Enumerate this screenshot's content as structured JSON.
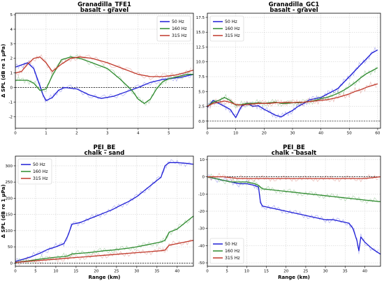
{
  "chart_data": [
    {
      "type": "line",
      "title": "Granadilla_TFE1",
      "subtitle": "basalt - gravel",
      "ylabel": "Δ SPL (dB re 1 μPa)",
      "xlabel": "",
      "xlim": [
        0,
        5.8
      ],
      "ylim": [
        -2.8,
        5.1
      ],
      "xticks": [
        0,
        1,
        2,
        3,
        4,
        5
      ],
      "yticks": [
        -2,
        -1,
        0,
        1,
        2,
        3,
        4,
        5
      ],
      "grid": true,
      "legend": "top-right",
      "series": [
        {
          "name": "50 Hz",
          "color": "#1f1fd6",
          "x": [
            0,
            0.2,
            0.4,
            0.6,
            0.7,
            0.8,
            0.9,
            1.0,
            1.2,
            1.4,
            1.6,
            2.0,
            2.4,
            2.8,
            3.2,
            3.6,
            4.0,
            4.4,
            4.8,
            5.0,
            5.2,
            5.4,
            5.6,
            5.8
          ],
          "y": [
            1.4,
            1.55,
            1.7,
            1.3,
            0.7,
            0.1,
            -0.5,
            -0.9,
            -0.7,
            -0.2,
            0.0,
            -0.1,
            -0.5,
            -0.75,
            -0.6,
            -0.3,
            0.0,
            0.35,
            0.55,
            0.6,
            0.65,
            0.7,
            0.8,
            0.9
          ]
        },
        {
          "name": "160 Hz",
          "color": "#2e8b2e",
          "x": [
            0,
            0.2,
            0.4,
            0.6,
            0.8,
            1.0,
            1.2,
            1.5,
            1.8,
            2.1,
            2.5,
            3.0,
            3.4,
            3.8,
            4.0,
            4.2,
            4.4,
            4.6,
            4.8,
            5.0,
            5.2,
            5.4,
            5.6,
            5.8
          ],
          "y": [
            0.5,
            0.5,
            0.5,
            0.3,
            -0.2,
            -0.1,
            0.8,
            1.9,
            2.1,
            2.0,
            1.7,
            1.3,
            0.6,
            -0.2,
            -0.8,
            -1.1,
            -0.8,
            -0.1,
            0.4,
            0.6,
            0.7,
            0.8,
            0.9,
            0.9
          ]
        },
        {
          "name": "315 Hz",
          "color": "#c0392b",
          "x": [
            0,
            0.2,
            0.4,
            0.6,
            0.8,
            1.0,
            1.2,
            1.5,
            1.8,
            2.1,
            2.5,
            3.0,
            3.5,
            4.0,
            4.4,
            4.8,
            5.2,
            5.5,
            5.8
          ],
          "y": [
            1.0,
            1.1,
            1.6,
            2.0,
            2.1,
            1.7,
            1.1,
            1.6,
            2.0,
            2.1,
            2.0,
            1.7,
            1.3,
            0.9,
            0.75,
            0.75,
            0.85,
            1.0,
            1.2
          ]
        }
      ]
    },
    {
      "type": "line",
      "title": "Granadilla_GC1",
      "subtitle": "basalt - gravel",
      "ylabel": "",
      "xlabel": "",
      "xlim": [
        0,
        61
      ],
      "ylim": [
        -1.2,
        18.2
      ],
      "xticks": [
        0,
        10,
        20,
        30,
        40,
        50,
        60
      ],
      "yticks": [
        0.0,
        2.5,
        5.0,
        7.5,
        10.0,
        12.5,
        15.0,
        17.5
      ],
      "grid": true,
      "legend": "top-left",
      "series": [
        {
          "name": "50 Hz",
          "color": "#1f1fd6",
          "x": [
            0,
            2,
            4,
            6,
            8,
            10,
            12,
            14,
            16,
            18,
            20,
            22,
            24,
            26,
            28,
            30,
            32,
            34,
            36,
            38,
            40,
            42,
            44,
            46,
            48,
            50,
            52,
            54,
            56,
            58,
            60
          ],
          "y": [
            2.3,
            3.5,
            3.0,
            2.5,
            2.0,
            0.6,
            2.5,
            3.0,
            2.5,
            2.6,
            2.0,
            1.5,
            1.0,
            0.7,
            1.3,
            1.8,
            2.5,
            3.0,
            3.6,
            3.8,
            4.0,
            4.5,
            5.0,
            5.5,
            6.5,
            7.5,
            8.5,
            9.5,
            10.5,
            11.5,
            12.0
          ]
        },
        {
          "name": "160 Hz",
          "color": "#2e8b2e",
          "x": [
            0,
            2,
            4,
            6,
            8,
            10,
            12,
            14,
            16,
            18,
            20,
            22,
            24,
            26,
            28,
            30,
            32,
            34,
            36,
            38,
            40,
            42,
            44,
            46,
            48,
            50,
            52,
            54,
            56,
            58,
            60
          ],
          "y": [
            2.5,
            3.2,
            3.5,
            4.0,
            3.5,
            2.7,
            2.8,
            3.0,
            3.0,
            3.1,
            3.0,
            3.1,
            3.2,
            3.0,
            3.0,
            3.1,
            3.1,
            3.2,
            3.3,
            3.5,
            3.8,
            4.0,
            4.3,
            4.7,
            5.2,
            5.8,
            6.5,
            7.3,
            8.0,
            8.5,
            9.0
          ]
        },
        {
          "name": "315 Hz",
          "color": "#c0392b",
          "x": [
            0,
            2,
            4,
            6,
            8,
            10,
            12,
            14,
            16,
            18,
            20,
            22,
            24,
            26,
            28,
            30,
            32,
            34,
            36,
            38,
            40,
            42,
            44,
            46,
            48,
            50,
            52,
            54,
            56,
            58,
            60
          ],
          "y": [
            2.5,
            3.0,
            3.2,
            3.4,
            3.2,
            2.8,
            2.7,
            2.8,
            2.9,
            3.0,
            3.0,
            3.0,
            3.1,
            3.1,
            3.2,
            3.1,
            3.2,
            3.2,
            3.3,
            3.4,
            3.5,
            3.6,
            3.8,
            4.0,
            4.3,
            4.6,
            5.0,
            5.3,
            5.7,
            6.0,
            6.3
          ]
        }
      ]
    },
    {
      "type": "line",
      "title": "PEI_BE",
      "subtitle": "chalk - sand",
      "ylabel": "Δ SPL (dB re 1 μPa)",
      "xlabel": "Range (km)",
      "xlim": [
        0,
        44
      ],
      "ylim": [
        -10,
        330
      ],
      "xticks": [
        0,
        5,
        10,
        15,
        20,
        25,
        30,
        35,
        40
      ],
      "yticks": [
        0,
        50,
        100,
        150,
        200,
        250,
        300
      ],
      "grid": true,
      "legend": "top-left",
      "series": [
        {
          "name": "50 Hz",
          "color": "#1f1fd6",
          "x": [
            0,
            2,
            4,
            6,
            8,
            10,
            12,
            13,
            14,
            16,
            18,
            20,
            22,
            24,
            26,
            28,
            30,
            32,
            34,
            36,
            37,
            38,
            40,
            42,
            44
          ],
          "y": [
            5,
            12,
            20,
            30,
            42,
            50,
            60,
            85,
            120,
            125,
            135,
            145,
            155,
            165,
            178,
            190,
            205,
            225,
            245,
            265,
            300,
            310,
            310,
            308,
            305
          ]
        },
        {
          "name": "160 Hz",
          "color": "#2e8b2e",
          "x": [
            0,
            2,
            4,
            6,
            8,
            10,
            12,
            13,
            14,
            16,
            18,
            20,
            22,
            24,
            26,
            28,
            30,
            32,
            34,
            36,
            37,
            38,
            40,
            42,
            44
          ],
          "y": [
            2,
            5,
            8,
            12,
            15,
            18,
            20,
            22,
            28,
            30,
            32,
            35,
            38,
            40,
            43,
            46,
            50,
            55,
            60,
            65,
            70,
            95,
            105,
            125,
            145
          ]
        },
        {
          "name": "315 Hz",
          "color": "#c0392b",
          "x": [
            0,
            2,
            4,
            6,
            8,
            10,
            12,
            14,
            16,
            18,
            20,
            22,
            24,
            26,
            28,
            30,
            32,
            34,
            36,
            37,
            38,
            40,
            42,
            44
          ],
          "y": [
            2,
            4,
            6,
            8,
            10,
            12,
            14,
            16,
            18,
            20,
            22,
            24,
            26,
            28,
            30,
            32,
            34,
            36,
            38,
            40,
            55,
            60,
            65,
            70
          ]
        }
      ]
    },
    {
      "type": "line",
      "title": "PEI_BE",
      "subtitle": "chalk - basalt",
      "ylabel": "",
      "xlabel": "Range (km)",
      "xlim": [
        0,
        44
      ],
      "ylim": [
        -52,
        12
      ],
      "xticks": [
        0,
        5,
        10,
        15,
        20,
        25,
        30,
        35,
        40
      ],
      "yticks": [
        -50,
        -40,
        -30,
        -20,
        -10,
        0,
        10
      ],
      "grid": true,
      "legend": "bottom-left",
      "series": [
        {
          "name": "50 Hz",
          "color": "#1f1fd6",
          "x": [
            0,
            2,
            4,
            6,
            8,
            10,
            12,
            13,
            13.5,
            14,
            16,
            18,
            20,
            22,
            24,
            26,
            28,
            30,
            32,
            34,
            36,
            37,
            38,
            38.5,
            39,
            40,
            42,
            44
          ],
          "y": [
            0,
            -1,
            -2,
            -3,
            -4,
            -4,
            -5,
            -6,
            -15,
            -17,
            -18,
            -19,
            -20,
            -21,
            -22,
            -23,
            -24,
            -25,
            -25,
            -26,
            -27,
            -30,
            -37,
            -43,
            -35,
            -38,
            -42,
            -45
          ]
        },
        {
          "name": "160 Hz",
          "color": "#2e8b2e",
          "x": [
            0,
            2,
            4,
            6,
            8,
            10,
            12,
            13,
            14,
            16,
            18,
            20,
            22,
            24,
            26,
            28,
            30,
            32,
            34,
            36,
            38,
            40,
            42,
            44
          ],
          "y": [
            0,
            -1,
            -2,
            -3,
            -3,
            -3,
            -4,
            -5,
            -7,
            -7.5,
            -8,
            -8.5,
            -9,
            -9.5,
            -10,
            -10.5,
            -11,
            -11.5,
            -12,
            -12.5,
            -13,
            -13.5,
            -14,
            -14.5
          ]
        },
        {
          "name": "315 Hz",
          "color": "#c0392b",
          "x": [
            0,
            2,
            4,
            6,
            8,
            10,
            12,
            14,
            16,
            18,
            20,
            22,
            24,
            26,
            28,
            30,
            32,
            34,
            36,
            38,
            40,
            42,
            44
          ],
          "y": [
            0,
            0,
            0,
            -0.5,
            -1,
            -1,
            -1,
            -1,
            -1,
            -1,
            -1,
            -1,
            -1,
            -1,
            -1,
            -1,
            -1,
            -1,
            -1,
            -1,
            -1,
            -0.5,
            0
          ]
        }
      ]
    }
  ]
}
